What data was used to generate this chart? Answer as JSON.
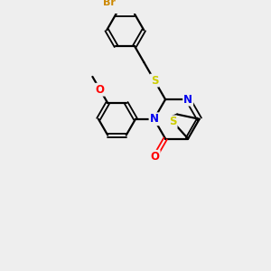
{
  "background_color": "#eeeeee",
  "bond_color": "#000000",
  "atom_colors": {
    "Br": "#cc8800",
    "S": "#cccc00",
    "N": "#0000ee",
    "O": "#ff0000",
    "C": "#000000"
  },
  "figsize": [
    3.0,
    3.0
  ],
  "dpi": 100
}
